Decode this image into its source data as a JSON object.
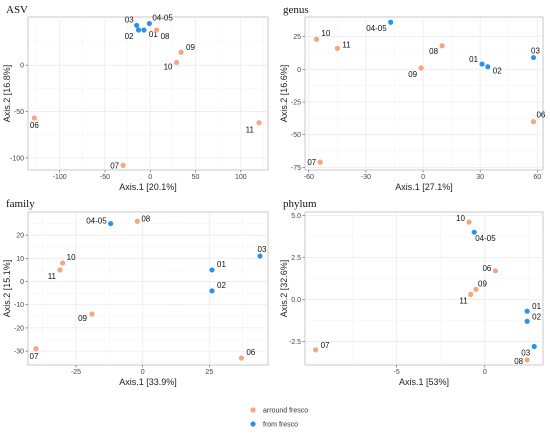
{
  "colors": {
    "arround": "#F4A582",
    "from": "#2E93E6",
    "panel_bg": "#FFFFFF",
    "grid": "#EBEBEB",
    "border": "#BDBDBD"
  },
  "legend": {
    "items": [
      {
        "label": "arround fresco",
        "color": "#F4A582"
      },
      {
        "label": "from fresco",
        "color": "#2E93E6"
      }
    ]
  },
  "chart_data": [
    {
      "type": "scatter",
      "title": "ASV",
      "xlabel": "Axis.1   [20.1%]",
      "ylabel": "Axis.2   [16.8%]",
      "xlim": [
        -135,
        130
      ],
      "ylim": [
        -113,
        52
      ],
      "xticks": [
        -100,
        -50,
        0,
        50,
        100
      ],
      "yticks": [
        -100,
        -50,
        0
      ],
      "grid": true,
      "points": [
        {
          "label": "03",
          "x": -15,
          "y": 43,
          "group": "from fresco"
        },
        {
          "label": "02",
          "x": -13,
          "y": 38,
          "group": "from fresco"
        },
        {
          "label": "01",
          "x": -7,
          "y": 38,
          "group": "from fresco"
        },
        {
          "label": "04-05",
          "x": -1,
          "y": 45,
          "group": "from fresco"
        },
        {
          "label": "08",
          "x": 7,
          "y": 38,
          "group": "arround fresco"
        },
        {
          "label": "09",
          "x": 34,
          "y": 14,
          "group": "arround fresco"
        },
        {
          "label": "10",
          "x": 29,
          "y": 3,
          "group": "arround fresco"
        },
        {
          "label": "06",
          "x": -128,
          "y": -57,
          "group": "arround fresco"
        },
        {
          "label": "11",
          "x": 120,
          "y": -62,
          "group": "arround fresco"
        },
        {
          "label": "07",
          "x": -30,
          "y": -108,
          "group": "arround fresco"
        }
      ]
    },
    {
      "type": "scatter",
      "title": "genus",
      "xlabel": "Axis.1   [27.1%]",
      "ylabel": "Axis.2   [16.6%]",
      "xlim": [
        -62,
        63
      ],
      "ylim": [
        -77,
        40
      ],
      "xticks": [
        -60,
        -30,
        0,
        30,
        60
      ],
      "yticks": [
        -75,
        -50,
        -25,
        0,
        25
      ],
      "grid": true,
      "points": [
        {
          "label": "10",
          "x": -56,
          "y": 23,
          "group": "arround fresco"
        },
        {
          "label": "11",
          "x": -45,
          "y": 16,
          "group": "arround fresco"
        },
        {
          "label": "04-05",
          "x": -17,
          "y": 36,
          "group": "from fresco"
        },
        {
          "label": "08",
          "x": 10,
          "y": 18,
          "group": "arround fresco"
        },
        {
          "label": "09",
          "x": -1,
          "y": 1,
          "group": "arround fresco"
        },
        {
          "label": "01",
          "x": 31,
          "y": 4,
          "group": "from fresco"
        },
        {
          "label": "02",
          "x": 34,
          "y": 2,
          "group": "from fresco"
        },
        {
          "label": "03",
          "x": 58,
          "y": 9,
          "group": "from fresco"
        },
        {
          "label": "06",
          "x": 58,
          "y": -40,
          "group": "arround fresco"
        },
        {
          "label": "07",
          "x": -54,
          "y": -71,
          "group": "arround fresco"
        }
      ]
    },
    {
      "type": "scatter",
      "title": "family",
      "xlabel": "Axis.1   [33.9%]",
      "ylabel": "Axis.2   [15.1%]",
      "xlim": [
        -43,
        47
      ],
      "ylim": [
        -36,
        30
      ],
      "xticks": [
        -25,
        0,
        25
      ],
      "yticks": [
        -30,
        -20,
        -10,
        0,
        10,
        20
      ],
      "grid": true,
      "points": [
        {
          "label": "04-05",
          "x": -12,
          "y": 25,
          "group": "from fresco"
        },
        {
          "label": "08",
          "x": -2,
          "y": 26,
          "group": "arround fresco"
        },
        {
          "label": "10",
          "x": -30,
          "y": 8,
          "group": "arround fresco"
        },
        {
          "label": "11",
          "x": -31,
          "y": 5,
          "group": "arround fresco"
        },
        {
          "label": "09",
          "x": -19,
          "y": -14,
          "group": "arround fresco"
        },
        {
          "label": "01",
          "x": 26,
          "y": 5,
          "group": "from fresco"
        },
        {
          "label": "02",
          "x": 26,
          "y": -4,
          "group": "from fresco"
        },
        {
          "label": "03",
          "x": 44,
          "y": 11,
          "group": "from fresco"
        },
        {
          "label": "06",
          "x": 37,
          "y": -33,
          "group": "arround fresco"
        },
        {
          "label": "07",
          "x": -40,
          "y": -29,
          "group": "arround fresco"
        }
      ]
    },
    {
      "type": "scatter",
      "title": "phylum",
      "xlabel": "Axis.1   [53%]",
      "ylabel": "Axis.2   [32.6%]",
      "xlim": [
        -10.2,
        3.3
      ],
      "ylim": [
        -3.9,
        5.2
      ],
      "xticks": [
        -5,
        0
      ],
      "yticks": [
        -2.5,
        0.0,
        2.5,
        5.0
      ],
      "ytick_labels": [
        "-2.5",
        "0.0",
        "2.5",
        "5.0"
      ],
      "grid": true,
      "points": [
        {
          "label": "10",
          "x": -0.9,
          "y": 4.6,
          "group": "arround fresco"
        },
        {
          "label": "04-05",
          "x": -0.6,
          "y": 4.0,
          "group": "from fresco"
        },
        {
          "label": "06",
          "x": 0.6,
          "y": 1.7,
          "group": "arround fresco"
        },
        {
          "label": "09",
          "x": -0.5,
          "y": 0.6,
          "group": "arround fresco"
        },
        {
          "label": "11",
          "x": -0.8,
          "y": 0.3,
          "group": "arround fresco"
        },
        {
          "label": "01",
          "x": 2.4,
          "y": -0.7,
          "group": "from fresco"
        },
        {
          "label": "02",
          "x": 2.4,
          "y": -1.3,
          "group": "from fresco"
        },
        {
          "label": "03",
          "x": 2.8,
          "y": -2.8,
          "group": "from fresco"
        },
        {
          "label": "08",
          "x": 2.4,
          "y": -3.6,
          "group": "arround fresco"
        },
        {
          "label": "07",
          "x": -9.6,
          "y": -3.0,
          "group": "arround fresco"
        }
      ]
    }
  ]
}
